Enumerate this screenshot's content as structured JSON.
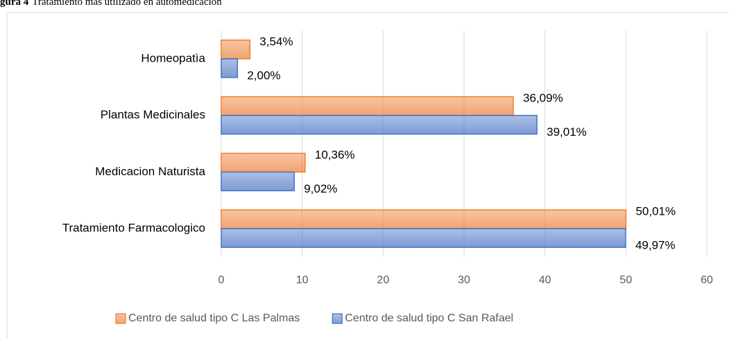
{
  "chart_data": {
    "type": "hbar",
    "figure_label": "gura 4",
    "title": "Tratamiento más utilizado en automedicación",
    "categories": [
      "Homeopatìa",
      "Plantas Medicinales",
      "Medicacion Naturista",
      "Tratamiento Farmacologico"
    ],
    "series": [
      {
        "name": "Centro de salud tipo C Las Palmas",
        "color": "#ed7d31",
        "values": [
          3.54,
          36.09,
          10.36,
          50.01
        ],
        "value_labels": [
          "3,54%",
          "36,09%",
          "10,36%",
          "50,01%"
        ]
      },
      {
        "name": "Centro de salud tipo C San Rafael",
        "color": "#4472c4",
        "values": [
          2.0,
          39.01,
          9.02,
          49.97
        ],
        "value_labels": [
          "2,00%",
          "39,01%",
          "9,02%",
          "49,97%"
        ]
      }
    ],
    "xlim": [
      0,
      60
    ],
    "xticks": [
      0,
      10,
      20,
      30,
      40,
      50,
      60
    ],
    "grid": true,
    "legend": "bottom"
  }
}
